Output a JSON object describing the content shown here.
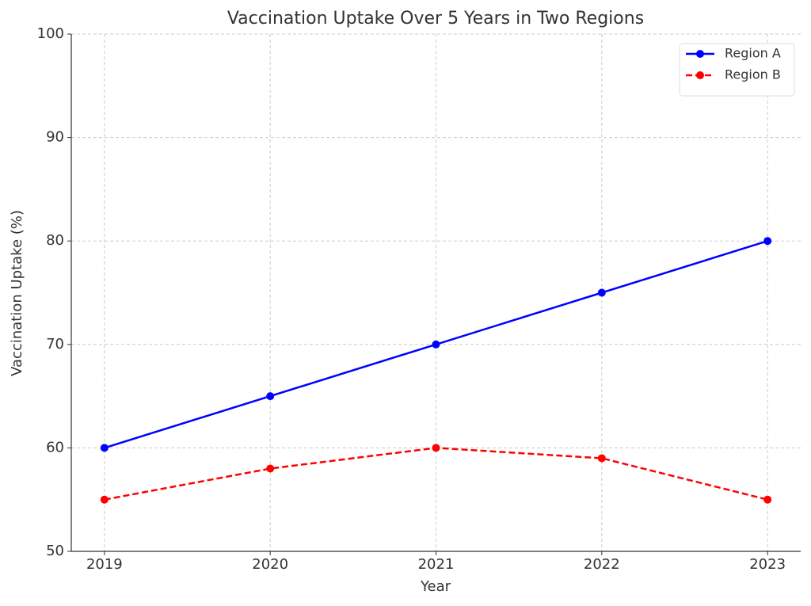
{
  "chart_data": {
    "type": "line",
    "title": "Vaccination Uptake Over 5 Years in Two Regions",
    "x_label": "Year",
    "y_label": "Vaccination Uptake (%)",
    "x": [
      2019,
      2020,
      2021,
      2022,
      2023
    ],
    "series": [
      {
        "name": "Region A",
        "color": "#0000ff",
        "linestyle": "solid",
        "values": [
          60,
          65,
          70,
          75,
          80
        ]
      },
      {
        "name": "Region B",
        "color": "#ff0000",
        "linestyle": "dashed",
        "values": [
          55,
          58,
          60,
          59,
          55
        ]
      }
    ],
    "xlim": [
      2018.8,
      2023.2
    ],
    "xticks": [
      2019,
      2020,
      2021,
      2022,
      2023
    ],
    "ylim": [
      50,
      100
    ],
    "yticks": [
      50,
      60,
      70,
      80,
      90,
      100
    ],
    "grid": true,
    "legend": "upper right"
  }
}
